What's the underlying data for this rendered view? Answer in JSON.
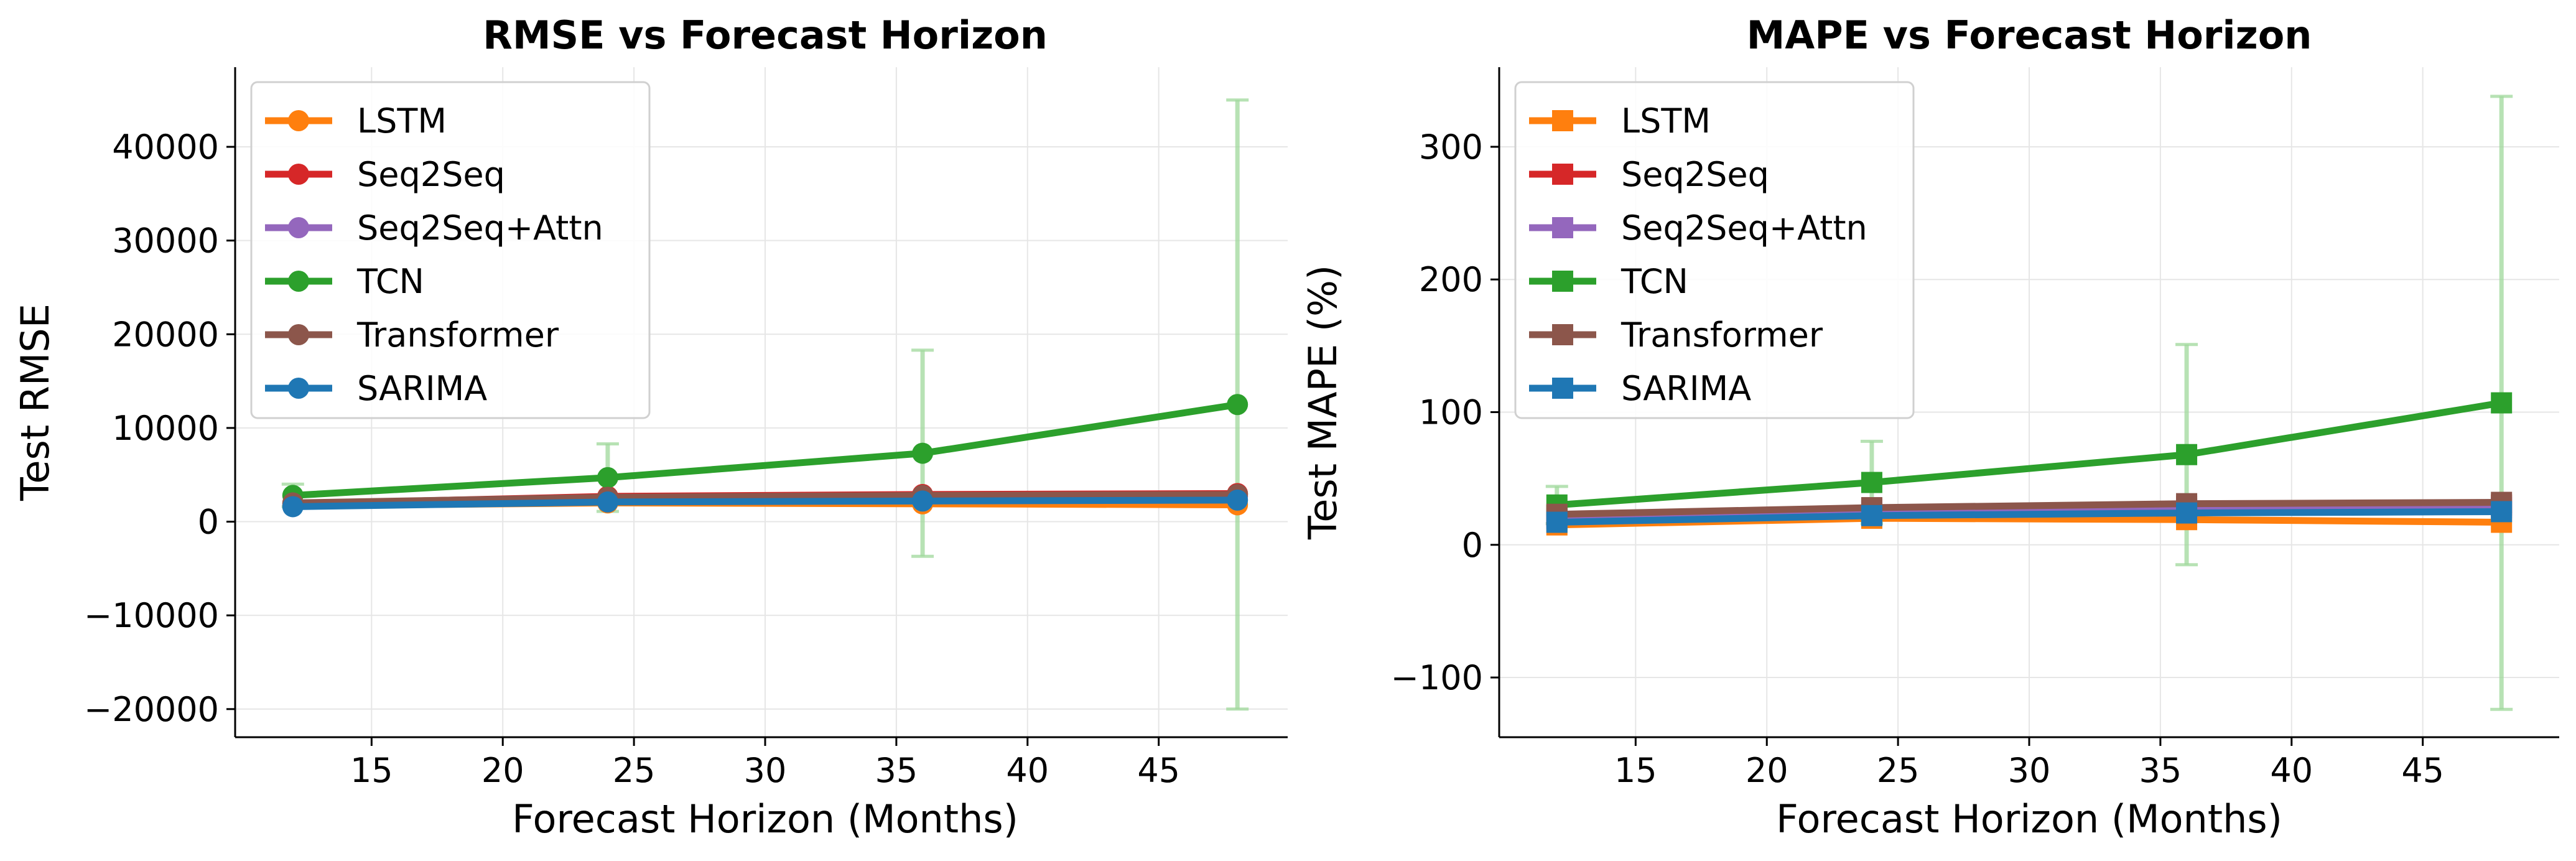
{
  "chart_data": [
    {
      "type": "line",
      "title": "RMSE vs Forecast Horizon",
      "xlabel": "Forecast Horizon (Months)",
      "ylabel": "Test RMSE",
      "xlim": [
        9.8,
        50.2
      ],
      "ylim": [
        -23000,
        48500
      ],
      "xticks": [
        15,
        20,
        25,
        30,
        35,
        40,
        45
      ],
      "yticks": [
        -20000,
        -10000,
        0,
        10000,
        20000,
        30000,
        40000
      ],
      "xtick_labels": [
        "15",
        "20",
        "25",
        "30",
        "35",
        "40",
        "45"
      ],
      "ytick_labels": [
        "−20000",
        "−10000",
        "0",
        "10000",
        "20000",
        "30000",
        "40000"
      ],
      "marker": "circle",
      "grid": true,
      "legend_position": "top-left",
      "x": [
        12,
        24,
        36,
        48
      ],
      "series": [
        {
          "name": "LSTM",
          "color": "#ff7f0e",
          "values": [
            1700,
            2000,
            1900,
            1800
          ],
          "error": [
            0,
            0,
            0,
            0
          ]
        },
        {
          "name": "Seq2Seq",
          "color": "#d62728",
          "values": [
            1900,
            2700,
            2900,
            3000
          ],
          "error": [
            0,
            0,
            0,
            0
          ]
        },
        {
          "name": "Seq2Seq+Attn",
          "color": "#9467bd",
          "values": [
            1800,
            2400,
            2600,
            2700
          ],
          "error": [
            0,
            0,
            0,
            0
          ]
        },
        {
          "name": "TCN",
          "color": "#2ca02c",
          "values": [
            2800,
            4700,
            7300,
            12500
          ],
          "error": [
            1200,
            3600,
            11000,
            32500
          ]
        },
        {
          "name": "Transformer",
          "color": "#8c564b",
          "values": [
            2000,
            2600,
            2800,
            2900
          ],
          "error": [
            0,
            0,
            0,
            0
          ]
        },
        {
          "name": "SARIMA",
          "color": "#1f77b4",
          "values": [
            1600,
            2100,
            2200,
            2300
          ],
          "error": [
            0,
            0,
            0,
            0
          ]
        }
      ]
    },
    {
      "type": "line",
      "title": "MAPE vs Forecast Horizon",
      "xlabel": "Forecast Horizon (Months)",
      "ylabel": "Test MAPE (%)",
      "xlim": [
        9.8,
        50.2
      ],
      "ylim": [
        -145,
        360
      ],
      "xticks": [
        15,
        20,
        25,
        30,
        35,
        40,
        45
      ],
      "yticks": [
        -100,
        0,
        100,
        200,
        300
      ],
      "xtick_labels": [
        "15",
        "20",
        "25",
        "30",
        "35",
        "40",
        "45"
      ],
      "ytick_labels": [
        "−100",
        "0",
        "100",
        "200",
        "300"
      ],
      "marker": "square",
      "grid": true,
      "legend_position": "top-left",
      "x": [
        12,
        24,
        36,
        48
      ],
      "series": [
        {
          "name": "LSTM",
          "color": "#ff7f0e",
          "values": [
            15,
            20,
            19,
            17
          ],
          "error": [
            0,
            0,
            0,
            0
          ]
        },
        {
          "name": "Seq2Seq",
          "color": "#d62728",
          "values": [
            22,
            27,
            29,
            30
          ],
          "error": [
            0,
            0,
            0,
            0
          ]
        },
        {
          "name": "Seq2Seq+Attn",
          "color": "#9467bd",
          "values": [
            20,
            25,
            27,
            28
          ],
          "error": [
            0,
            0,
            0,
            0
          ]
        },
        {
          "name": "TCN",
          "color": "#2ca02c",
          "values": [
            30,
            47,
            68,
            107
          ],
          "error": [
            14,
            31,
            83,
            231
          ]
        },
        {
          "name": "Transformer",
          "color": "#8c564b",
          "values": [
            23,
            28,
            31,
            32
          ],
          "error": [
            0,
            0,
            0,
            0
          ]
        },
        {
          "name": "SARIMA",
          "color": "#1f77b4",
          "values": [
            17,
            22,
            24,
            25
          ],
          "error": [
            0,
            0,
            0,
            0
          ]
        }
      ]
    }
  ]
}
